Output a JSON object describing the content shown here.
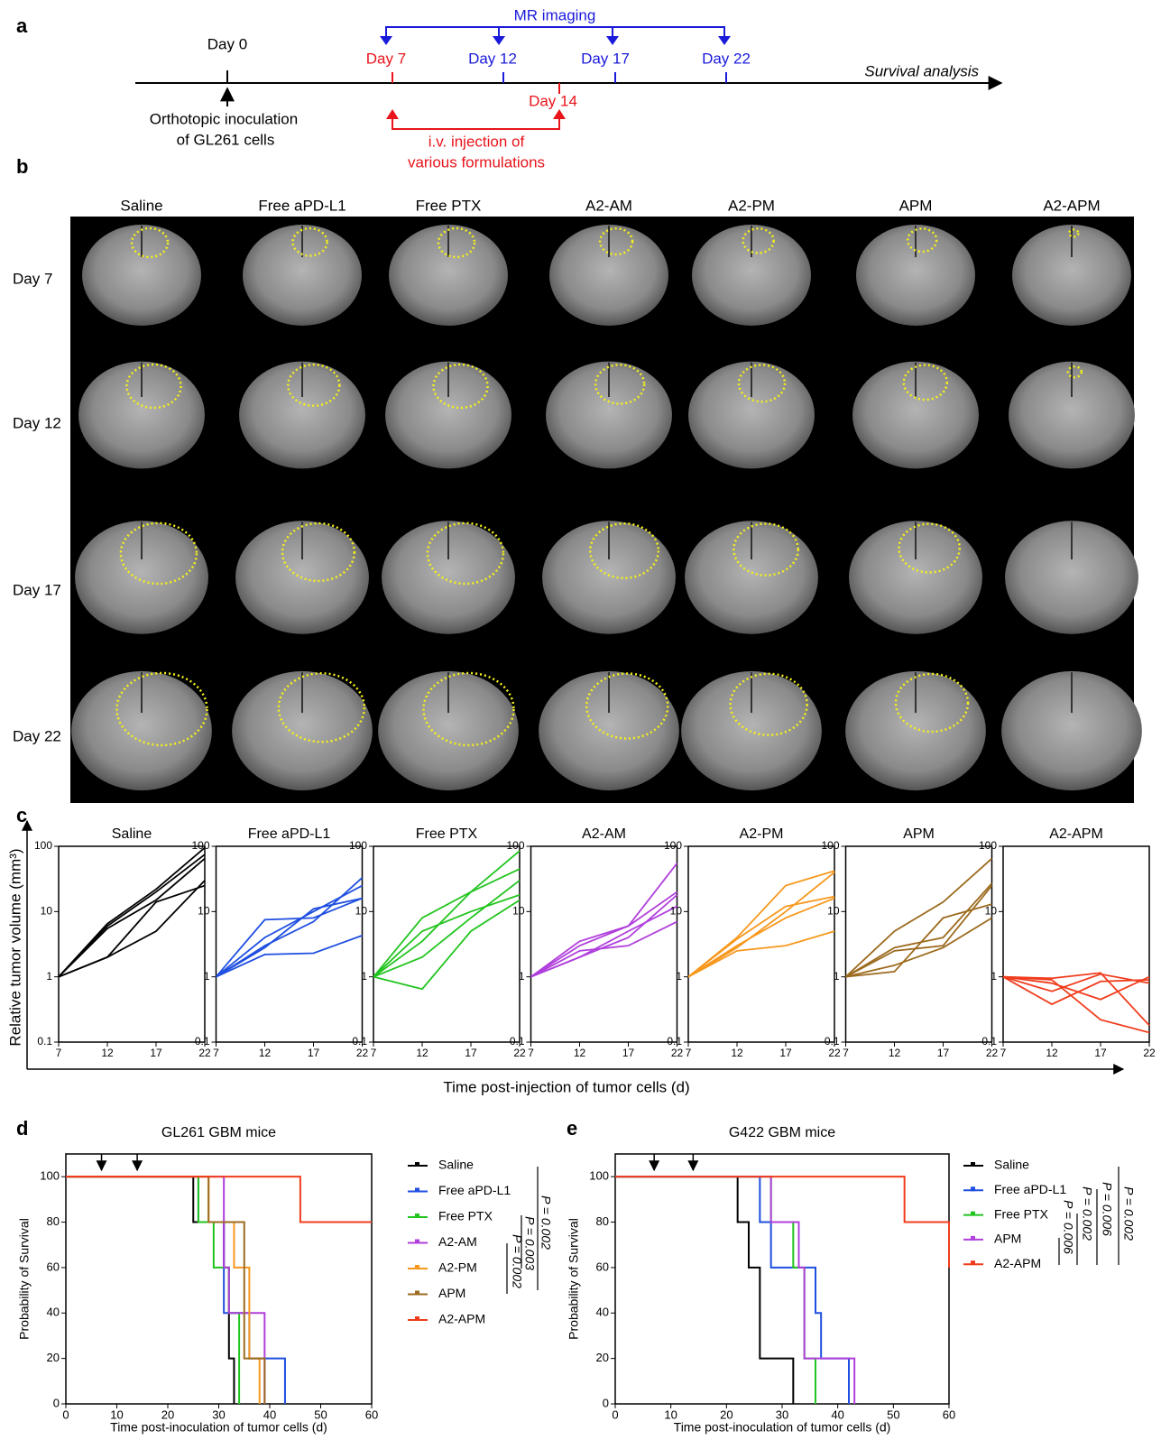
{
  "panel_a": {
    "label": "a",
    "day0": "Day 0",
    "inoculation": [
      "Orthotopic inoculation",
      "of GL261 cells"
    ],
    "mr_imaging": "MR imaging",
    "day7": "Day 7",
    "day12": "Day 12",
    "day14": "Day 14",
    "day17": "Day 17",
    "day22": "Day 22",
    "survival": "Survival analysis",
    "injection": [
      "i.v. injection of",
      "various formulations"
    ]
  },
  "panel_b": {
    "label": "b",
    "columns": [
      "Saline",
      "Free aPD-L1",
      "Free PTX",
      "A2-AM",
      "A2-PM",
      "APM",
      "A2-APM"
    ],
    "rows": [
      "Day 7",
      "Day 12",
      "Day 17",
      "Day 22"
    ]
  },
  "panel_c": {
    "label": "c",
    "ylabel": "Relative tumor volume (mm³)",
    "xlabel": "Time post-injection of  tumor cells (d)"
  },
  "panel_d": {
    "label": "d"
  },
  "panel_e": {
    "label": "e"
  },
  "chart_data": [
    {
      "type": "line",
      "title": "Saline",
      "color": "#000000",
      "log_scale": true,
      "x": [
        7,
        12,
        17,
        22
      ],
      "xlim": [
        7,
        22
      ],
      "xticks": [
        7,
        12,
        17,
        22
      ],
      "ylim": [
        0.1,
        100
      ],
      "yticks": [
        0.1,
        1,
        10,
        100
      ],
      "series": [
        {
          "values": [
            1,
            6.5,
            22,
            95
          ]
        },
        {
          "values": [
            1,
            5.5,
            15,
            65
          ]
        },
        {
          "values": [
            1,
            2,
            5,
            30
          ]
        },
        {
          "values": [
            1,
            2,
            14,
            25
          ]
        },
        {
          "values": [
            1,
            6,
            20,
            75
          ]
        }
      ]
    },
    {
      "type": "line",
      "title": "Free aPD-L1",
      "color": "#1f4fe0",
      "log_scale": true,
      "x": [
        7,
        12,
        17,
        22
      ],
      "xlim": [
        7,
        22
      ],
      "xticks": [
        7,
        12,
        17,
        22
      ],
      "ylim": [
        0.1,
        100
      ],
      "yticks": [
        0.1,
        1,
        10,
        100
      ],
      "series": [
        {
          "values": [
            1,
            7.5,
            8,
            16
          ]
        },
        {
          "values": [
            1,
            2.2,
            2.3,
            4.3
          ]
        },
        {
          "values": [
            1,
            2.8,
            11,
            16
          ]
        },
        {
          "values": [
            1,
            3,
            7,
            33
          ]
        },
        {
          "values": [
            1,
            4,
            10,
            25
          ]
        }
      ]
    },
    {
      "type": "line",
      "title": "Free PTX",
      "color": "#22c41f",
      "log_scale": true,
      "x": [
        7,
        12,
        17,
        22
      ],
      "xlim": [
        7,
        22
      ],
      "xticks": [
        7,
        12,
        17,
        22
      ],
      "ylim": [
        0.1,
        100
      ],
      "yticks": [
        0.1,
        1,
        10,
        100
      ],
      "series": [
        {
          "values": [
            1,
            8,
            20,
            85
          ]
        },
        {
          "values": [
            1,
            0.65,
            5,
            15
          ]
        },
        {
          "values": [
            1,
            3.5,
            20,
            45
          ]
        },
        {
          "values": [
            1,
            2,
            8,
            30
          ]
        },
        {
          "values": [
            1,
            5,
            10,
            18
          ]
        }
      ]
    },
    {
      "type": "line",
      "title": "A2-AM",
      "color": "#b03fdc",
      "log_scale": true,
      "x": [
        7,
        12,
        17,
        22
      ],
      "xlim": [
        7,
        22
      ],
      "xticks": [
        7,
        12,
        17,
        22
      ],
      "ylim": [
        0.1,
        100
      ],
      "yticks": [
        0.1,
        1,
        10,
        100
      ],
      "series": [
        {
          "values": [
            1,
            3,
            6,
            55
          ]
        },
        {
          "values": [
            1,
            2,
            4,
            18
          ]
        },
        {
          "values": [
            1,
            2.5,
            3,
            7
          ]
        },
        {
          "values": [
            1,
            2,
            5,
            12
          ]
        },
        {
          "values": [
            1,
            3.5,
            6,
            20
          ]
        }
      ]
    },
    {
      "type": "line",
      "title": "A2-PM",
      "color": "#f7981d",
      "log_scale": true,
      "x": [
        7,
        12,
        17,
        22
      ],
      "xlim": [
        7,
        22
      ],
      "xticks": [
        7,
        12,
        17,
        22
      ],
      "ylim": [
        0.1,
        100
      ],
      "yticks": [
        0.1,
        1,
        10,
        100
      ],
      "series": [
        {
          "values": [
            1,
            4,
            25,
            42
          ]
        },
        {
          "values": [
            1,
            2.5,
            3,
            5
          ]
        },
        {
          "values": [
            1,
            3,
            8,
            16
          ]
        },
        {
          "values": [
            1,
            2.8,
            10,
            40
          ]
        },
        {
          "values": [
            1,
            3.8,
            12,
            17
          ]
        }
      ]
    },
    {
      "type": "line",
      "title": "APM",
      "color": "#9c6b1f",
      "log_scale": true,
      "x": [
        7,
        12,
        17,
        22
      ],
      "xlim": [
        7,
        22
      ],
      "xticks": [
        7,
        12,
        17,
        22
      ],
      "ylim": [
        0.1,
        100
      ],
      "yticks": [
        0.1,
        1,
        10,
        100
      ],
      "series": [
        {
          "values": [
            1,
            5,
            14,
            65
          ]
        },
        {
          "values": [
            1,
            1.2,
            8,
            13
          ]
        },
        {
          "values": [
            1,
            2.5,
            3,
            25
          ]
        },
        {
          "values": [
            1,
            1.5,
            2.8,
            8
          ]
        },
        {
          "values": [
            1,
            2.8,
            4,
            27
          ]
        }
      ]
    },
    {
      "type": "line",
      "title": "A2-APM",
      "color": "#f03c1c",
      "log_scale": true,
      "x": [
        7,
        12,
        17,
        22
      ],
      "xlim": [
        7,
        22
      ],
      "xticks": [
        7,
        12,
        17,
        22
      ],
      "ylim": [
        0.1,
        100
      ],
      "yticks": [
        0.1,
        1,
        10,
        100
      ],
      "series": [
        {
          "values": [
            1,
            0.8,
            0.45,
            1
          ]
        },
        {
          "values": [
            1,
            0.38,
            0.85,
            0.9
          ]
        },
        {
          "values": [
            1,
            0.9,
            0.22,
            0.14
          ]
        },
        {
          "values": [
            1,
            0.6,
            1.1,
            0.8
          ]
        },
        {
          "values": [
            1,
            0.95,
            1.15,
            0.18
          ]
        }
      ]
    },
    {
      "type": "survival",
      "title": "GL261 GBM mice",
      "xlabel": "Time post-inoculation of tumor cells (d)",
      "ylabel": "Probability of Survival",
      "xlim": [
        0,
        60
      ],
      "xticks": [
        0,
        10,
        20,
        30,
        40,
        50,
        60
      ],
      "ylim": [
        0,
        110
      ],
      "yticks": [
        0,
        20,
        40,
        60,
        80,
        100
      ],
      "injection_days": [
        7,
        14
      ],
      "series": [
        {
          "name": "Saline",
          "color": "#000000",
          "x": [
            0,
            25,
            31,
            32,
            33
          ],
          "values": [
            100,
            80,
            60,
            20,
            0
          ]
        },
        {
          "name": "Free aPD-L1",
          "color": "#1f4fe0",
          "x": [
            0,
            26,
            31,
            36,
            43
          ],
          "values": [
            100,
            80,
            40,
            20,
            0
          ]
        },
        {
          "name": "Free PTX",
          "color": "#22c41f",
          "x": [
            0,
            26,
            29,
            32,
            34
          ],
          "values": [
            100,
            80,
            60,
            40,
            0
          ]
        },
        {
          "name": "A2-AM",
          "color": "#b03fdc",
          "x": [
            0,
            31,
            32,
            39
          ],
          "values": [
            100,
            60,
            40,
            0
          ]
        },
        {
          "name": "A2-PM",
          "color": "#f7981d",
          "x": [
            0,
            28,
            33,
            36,
            38
          ],
          "values": [
            100,
            80,
            60,
            20,
            0
          ]
        },
        {
          "name": "APM",
          "color": "#9c6b1f",
          "x": [
            0,
            28,
            35,
            39
          ],
          "values": [
            100,
            80,
            20,
            0
          ]
        },
        {
          "name": "A2-APM",
          "color": "#f03c1c",
          "x": [
            0,
            46,
            60
          ],
          "values": [
            100,
            80,
            80
          ]
        }
      ],
      "annotations": [
        "P = 0.002",
        "P = 0.003",
        "P = 0.002"
      ]
    },
    {
      "type": "survival",
      "title": "G422 GBM mice",
      "xlabel": "Time post-inoculation of tumor cells (d)",
      "ylabel": "Probability of Survival",
      "xlim": [
        0,
        60
      ],
      "xticks": [
        0,
        10,
        20,
        30,
        40,
        50,
        60
      ],
      "ylim": [
        0,
        110
      ],
      "yticks": [
        0,
        20,
        40,
        60,
        80,
        100
      ],
      "injection_days": [
        7,
        14
      ],
      "series": [
        {
          "name": "Saline",
          "color": "#000000",
          "x": [
            0,
            22,
            24,
            26,
            32
          ],
          "values": [
            100,
            80,
            60,
            20,
            0
          ]
        },
        {
          "name": "Free aPD-L1",
          "color": "#1f4fe0",
          "x": [
            0,
            26,
            28,
            36,
            37,
            42
          ],
          "values": [
            100,
            80,
            60,
            40,
            20,
            0
          ]
        },
        {
          "name": "Free PTX",
          "color": "#22c41f",
          "x": [
            0,
            28,
            32,
            34,
            36
          ],
          "values": [
            100,
            80,
            60,
            20,
            0
          ]
        },
        {
          "name": "APM",
          "color": "#b03fdc",
          "x": [
            0,
            28,
            33,
            34,
            43
          ],
          "values": [
            100,
            80,
            60,
            20,
            0
          ]
        },
        {
          "name": "A2-APM",
          "color": "#f03c1c",
          "x": [
            0,
            52,
            60
          ],
          "values": [
            100,
            80,
            60
          ]
        }
      ],
      "annotations": [
        "P = 0.002",
        "P = 0.006",
        "P = 0.002",
        "P = 0.006"
      ]
    }
  ]
}
